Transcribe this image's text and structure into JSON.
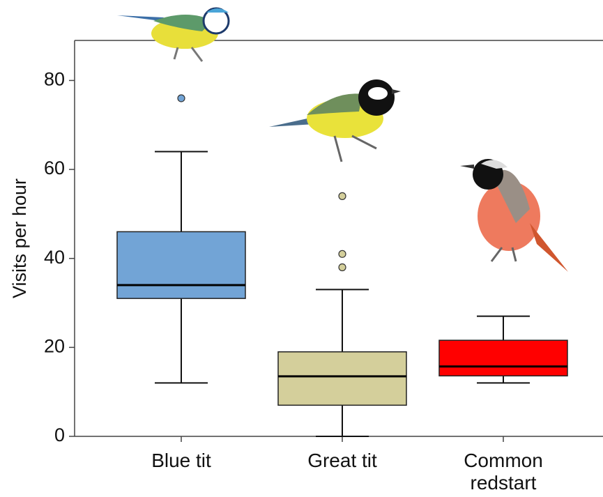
{
  "chart_data": {
    "type": "box",
    "y_label": "Visits per hour",
    "categories": [
      "Blue tit",
      "Great tit",
      "Common redstart"
    ],
    "boxes": [
      {
        "color": "#72a4d6",
        "whisker_low": 12,
        "q1": 31,
        "median": 34,
        "q3": 46,
        "whisker_high": 64,
        "outliers": [
          76
        ]
      },
      {
        "color": "#d4cf9b",
        "whisker_low": 0,
        "q1": 7,
        "median": 13.5,
        "q3": 19,
        "whisker_high": 33,
        "outliers": [
          54,
          41,
          38
        ]
      },
      {
        "color": "#ff0000",
        "whisker_low": 12,
        "q1": 13.6,
        "median": 15.7,
        "q3": 21.6,
        "whisker_high": 27,
        "outliers": []
      }
    ],
    "ylim": [
      0,
      89
    ],
    "yticks": [
      0,
      20,
      40,
      60,
      80
    ]
  }
}
